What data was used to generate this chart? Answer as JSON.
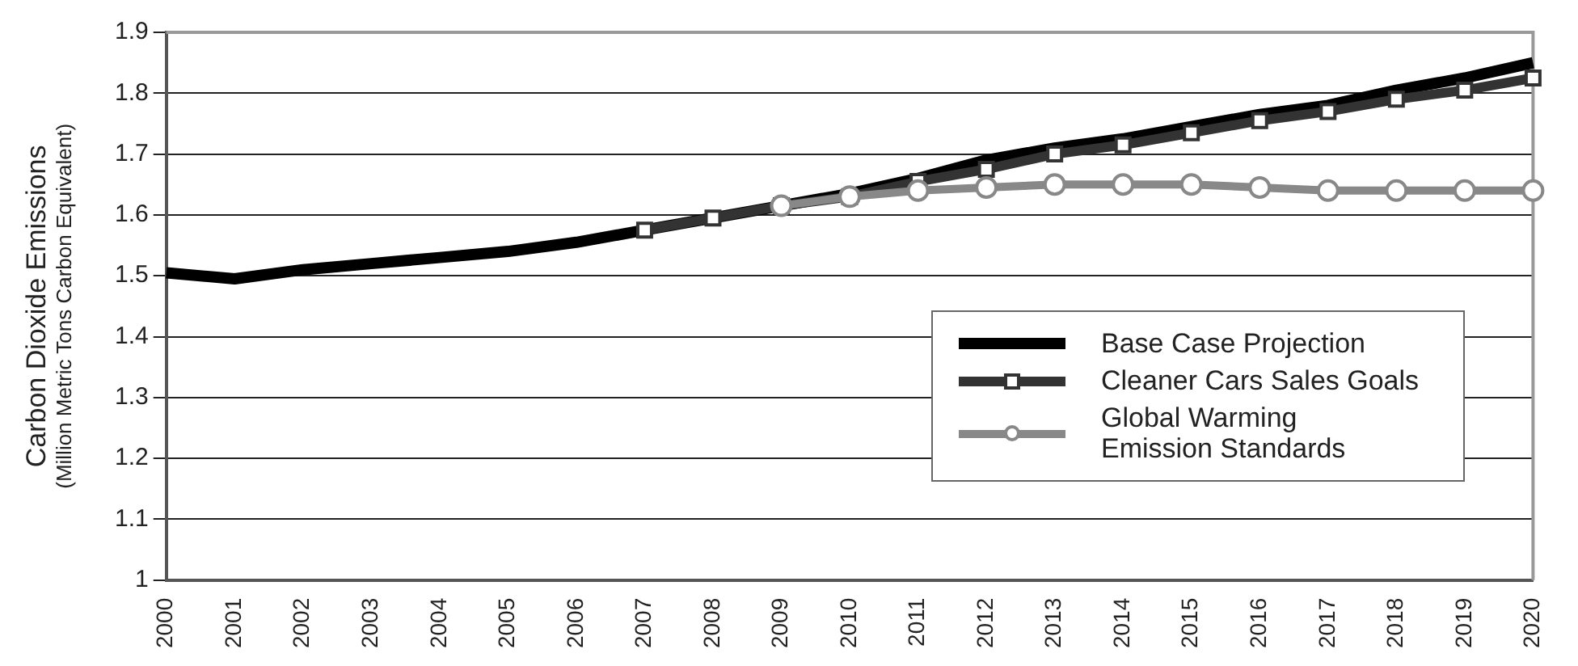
{
  "chart_data": {
    "type": "line",
    "ylabel": "Carbon Dioxide Emissions\n(Million Metric Tons Carbon Equivalent)",
    "categories": [
      "2000",
      "2001",
      "2002",
      "2003",
      "2004",
      "2005",
      "2006",
      "2007",
      "2008",
      "2009",
      "2010",
      "2011",
      "2012",
      "2013",
      "2014",
      "2015",
      "2016",
      "2017",
      "2018",
      "2019",
      "2020"
    ],
    "ylim": [
      1,
      1.9
    ],
    "yticks": [
      1,
      1.1,
      1.2,
      1.3,
      1.4,
      1.5,
      1.6,
      1.7,
      1.8,
      1.9
    ],
    "grid": "y",
    "legend": "bottom right",
    "line_style": "solid",
    "series": [
      {
        "name": "Base Case Projection",
        "color": "#000000",
        "marker": "none",
        "values": [
          1.505,
          1.495,
          1.51,
          1.52,
          1.53,
          1.54,
          1.555,
          1.575,
          1.595,
          1.615,
          1.635,
          1.66,
          1.69,
          1.71,
          1.725,
          1.745,
          1.765,
          1.78,
          1.805,
          1.825,
          1.85
        ]
      },
      {
        "name": "Cleaner Cars Sales Goals",
        "color": "#333333",
        "marker": "square",
        "values": [
          null,
          null,
          null,
          null,
          null,
          null,
          null,
          1.575,
          1.595,
          1.615,
          1.63,
          1.655,
          1.675,
          1.7,
          1.715,
          1.735,
          1.755,
          1.77,
          1.79,
          1.805,
          1.825
        ]
      },
      {
        "name": "Global Warming\nEmission Standards",
        "color": "#888888",
        "marker": "circle",
        "values": [
          null,
          null,
          null,
          null,
          null,
          null,
          null,
          null,
          null,
          1.615,
          1.63,
          1.64,
          1.645,
          1.65,
          1.65,
          1.65,
          1.645,
          1.64,
          1.64,
          1.64,
          1.64
        ]
      }
    ]
  }
}
